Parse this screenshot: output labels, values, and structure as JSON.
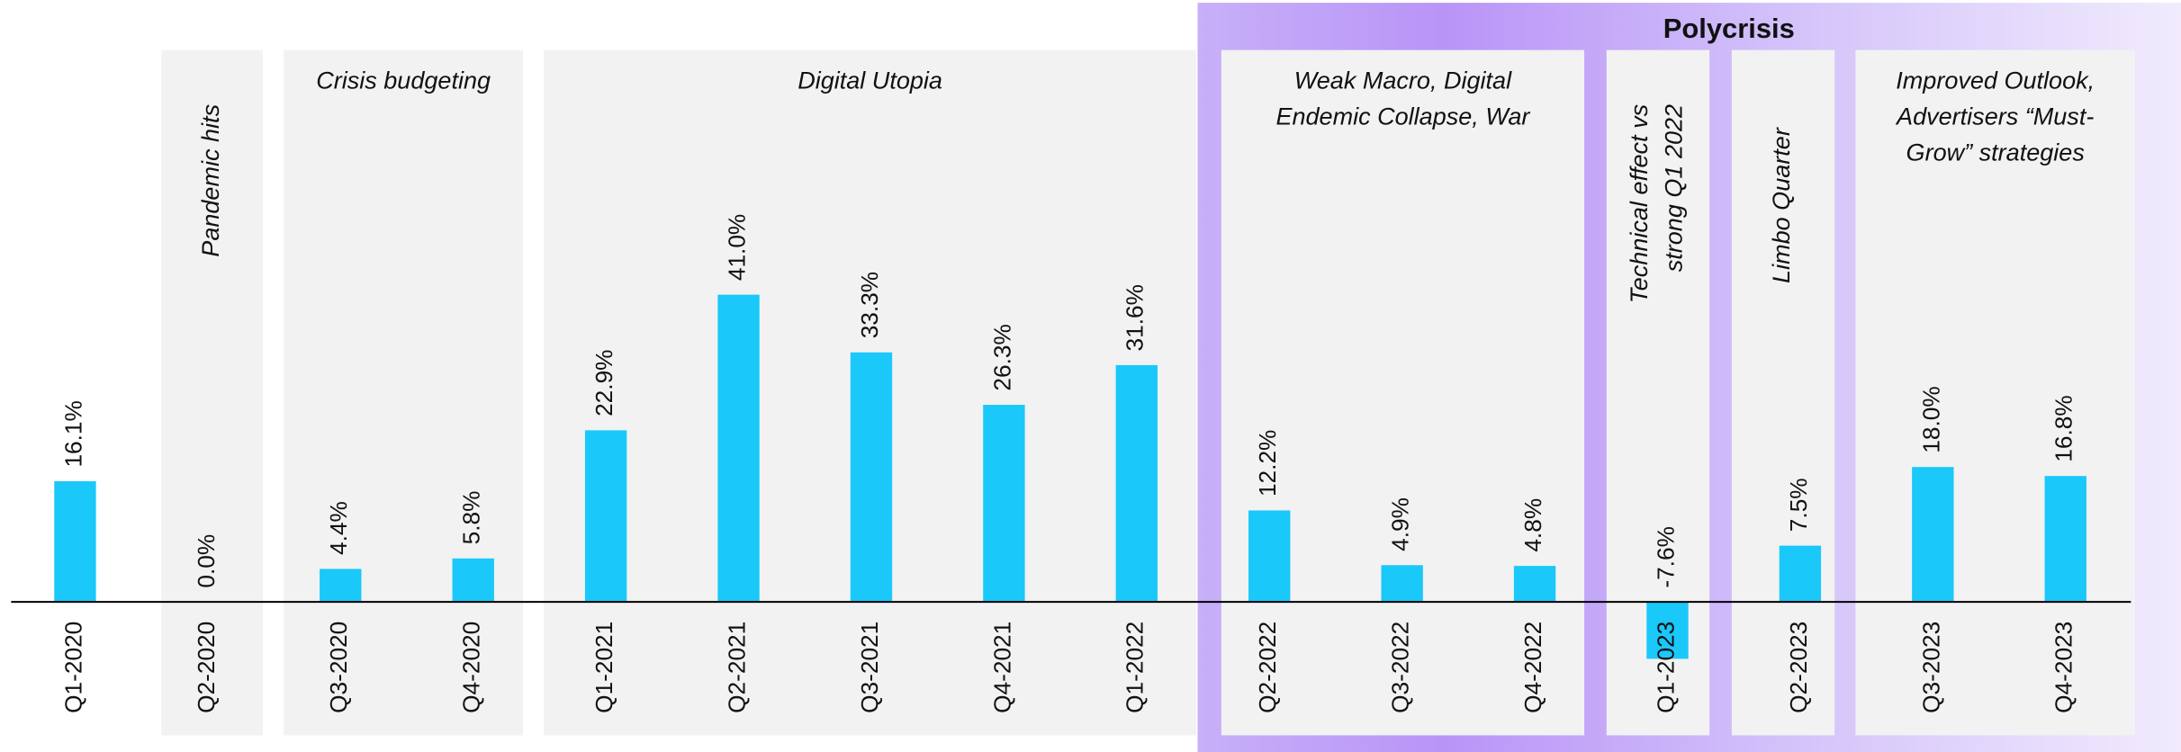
{
  "chart_data": {
    "type": "bar",
    "title": "Polycrisis",
    "categories": [
      "Q1-2020",
      "Q2-2020",
      "Q3-2020",
      "Q4-2020",
      "Q1-2021",
      "Q2-2021",
      "Q3-2021",
      "Q4-2021",
      "Q1-2022",
      "Q2-2022",
      "Q3-2022",
      "Q4-2022",
      "Q1-2023",
      "Q2-2023",
      "Q3-2023",
      "Q4-2023"
    ],
    "values": [
      16.1,
      0.0,
      4.4,
      5.8,
      22.9,
      41.0,
      33.3,
      26.3,
      31.6,
      12.2,
      4.9,
      4.8,
      -7.6,
      7.5,
      18.0,
      16.8
    ],
    "value_labels": [
      "16.1%",
      "0.0%",
      "4.4%",
      "5.8%",
      "22.9%",
      "41.0%",
      "33.3%",
      "26.3%",
      "31.6%",
      "12.2%",
      "4.9%",
      "4.8%",
      "-7.6%",
      "7.5%",
      "18.0%",
      "16.8%"
    ],
    "color": "#1ac8fa",
    "annotations": [
      {
        "lines": [
          "Pandemic hits"
        ]
      },
      {
        "lines": [
          "Crisis budgeting"
        ]
      },
      {
        "lines": [
          "Digital Utopia"
        ]
      },
      {
        "lines": [
          "Weak Macro, Digital",
          "Endemic Collapse, War"
        ]
      },
      {
        "lines": [
          "Technical effect vs",
          "strong Q1 2022"
        ]
      },
      {
        "lines": [
          "Limbo Quarter"
        ]
      },
      {
        "lines": [
          "Improved Outlook,",
          "Advertisers “Must-",
          "Grow” strategies"
        ]
      }
    ]
  }
}
